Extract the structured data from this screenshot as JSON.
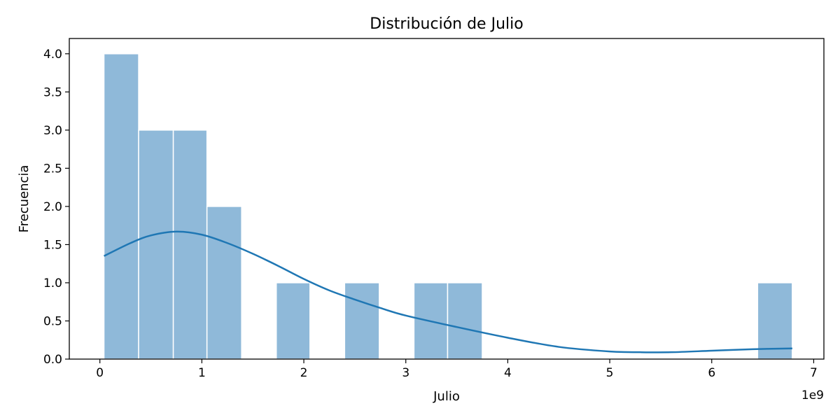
{
  "chart_data": {
    "type": "bar",
    "title": "Distribución de Julio",
    "xlabel": "Julio",
    "ylabel": "Frecuencia",
    "x_multiplier_label": "1e9",
    "xlim": [
      -0.3,
      7.1
    ],
    "ylim": [
      0,
      4.2
    ],
    "xticks": [
      0,
      1,
      2,
      3,
      4,
      5,
      6,
      7
    ],
    "xtick_labels": [
      "0",
      "1",
      "2",
      "3",
      "4",
      "5",
      "6",
      "7"
    ],
    "yticks": [
      0,
      0.5,
      1.0,
      1.5,
      2.0,
      2.5,
      3.0,
      3.5,
      4.0
    ],
    "ytick_labels": [
      "0.0",
      "0.5",
      "1.0",
      "1.5",
      "2.0",
      "2.5",
      "3.0",
      "3.5",
      "4.0"
    ],
    "bins": [
      {
        "x0": 0.04,
        "x1": 0.38,
        "count": 4
      },
      {
        "x0": 0.38,
        "x1": 0.72,
        "count": 3
      },
      {
        "x0": 0.72,
        "x1": 1.05,
        "count": 3
      },
      {
        "x0": 1.05,
        "x1": 1.39,
        "count": 2
      },
      {
        "x0": 1.39,
        "x1": 1.73,
        "count": 0
      },
      {
        "x0": 1.73,
        "x1": 2.06,
        "count": 1
      },
      {
        "x0": 2.06,
        "x1": 2.4,
        "count": 0
      },
      {
        "x0": 2.4,
        "x1": 2.74,
        "count": 1
      },
      {
        "x0": 2.74,
        "x1": 3.08,
        "count": 0
      },
      {
        "x0": 3.08,
        "x1": 3.41,
        "count": 1
      },
      {
        "x0": 3.41,
        "x1": 3.75,
        "count": 1
      },
      {
        "x0": 3.75,
        "x1": 4.09,
        "count": 0
      },
      {
        "x0": 4.09,
        "x1": 4.42,
        "count": 0
      },
      {
        "x0": 4.42,
        "x1": 4.76,
        "count": 0
      },
      {
        "x0": 4.76,
        "x1": 5.1,
        "count": 0
      },
      {
        "x0": 5.1,
        "x1": 5.44,
        "count": 0
      },
      {
        "x0": 5.44,
        "x1": 5.77,
        "count": 0
      },
      {
        "x0": 5.77,
        "x1": 6.11,
        "count": 0
      },
      {
        "x0": 6.11,
        "x1": 6.45,
        "count": 0
      },
      {
        "x0": 6.45,
        "x1": 6.79,
        "count": 1
      }
    ],
    "kde": {
      "x": [
        0.04,
        0.3,
        0.5,
        0.75,
        1.0,
        1.25,
        1.5,
        1.75,
        2.0,
        2.25,
        2.5,
        2.75,
        3.0,
        3.5,
        4.0,
        4.5,
        5.0,
        5.3,
        5.6,
        6.0,
        6.4,
        6.79
      ],
      "y": [
        1.35,
        1.52,
        1.62,
        1.67,
        1.63,
        1.52,
        1.38,
        1.22,
        1.05,
        0.9,
        0.78,
        0.67,
        0.57,
        0.42,
        0.28,
        0.16,
        0.1,
        0.09,
        0.09,
        0.11,
        0.13,
        0.14
      ]
    },
    "colors": {
      "bar_fill": "#8fb9d9",
      "bar_edge": "#ffffff",
      "kde_line": "#1f77b4",
      "axis": "#000000"
    },
    "grid": false
  }
}
